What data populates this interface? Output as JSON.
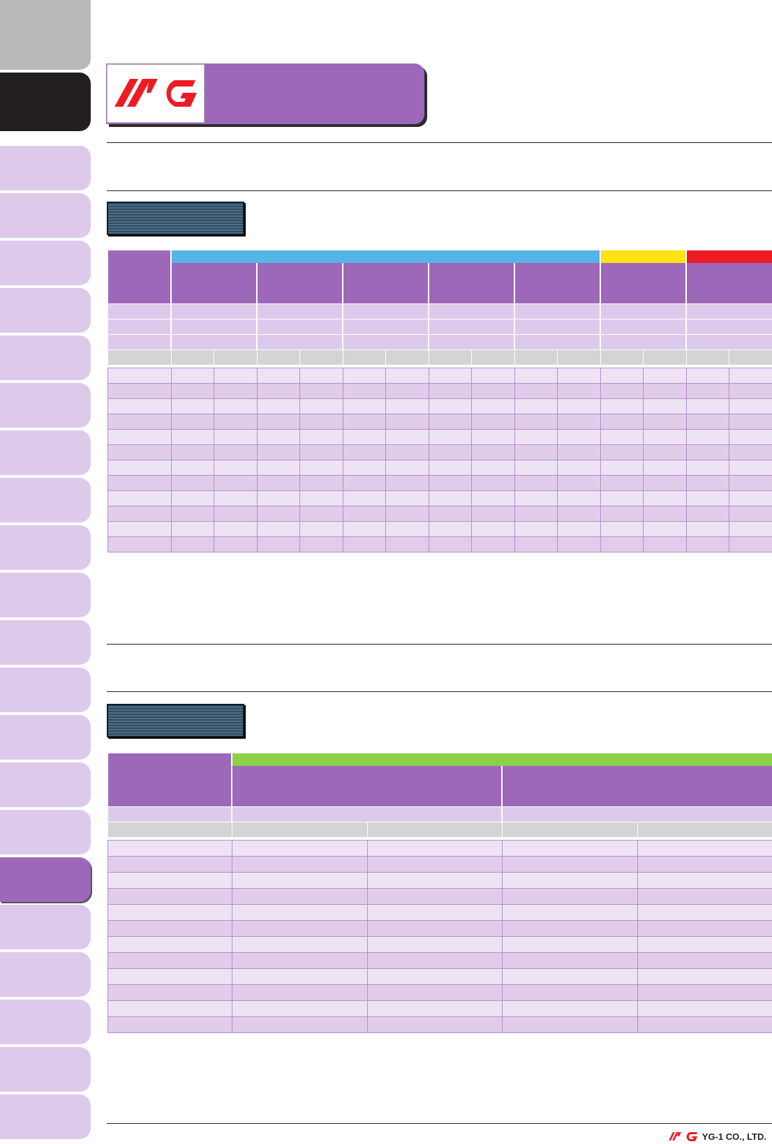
{
  "brand": {
    "logo_text": "YG",
    "company": "YG-1 CO., LTD."
  },
  "sidebar": {
    "tab_count": 24,
    "active_tab_color": "#9d67ba"
  },
  "colors": {
    "purple": "#9d67ba",
    "light_purple": "#ddcaea",
    "blue": "#54b4e8",
    "yellow": "#ffe212",
    "red": "#ed1c24",
    "green": "#8cd048"
  }
}
